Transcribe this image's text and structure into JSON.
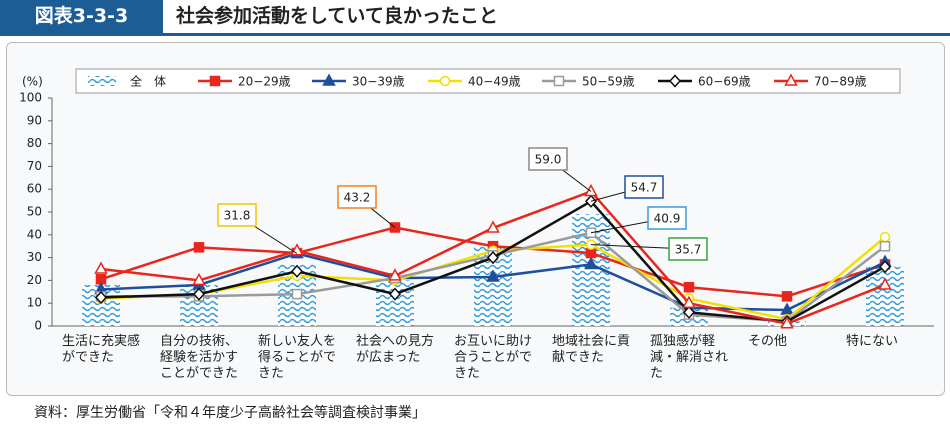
{
  "header": {
    "label": "図表3-3-3",
    "title": "社会参加活動をしていて良かったこと"
  },
  "chart_data": {
    "type": "bar-line",
    "y_unit": "(%)",
    "categories": [
      "生活に充実感ができた",
      "自分の技術、経験を活かすことができた",
      "新しい友人を得ることができた",
      "社会への見方が広まった",
      "お互いに助け合うことができた",
      "地域社会に貢献できた",
      "孤独感が軽減・解消された",
      "その他",
      "特にない"
    ],
    "ylim": [
      0,
      100
    ],
    "yticks": [
      0,
      10,
      20,
      30,
      40,
      50,
      60,
      70,
      80,
      90,
      100
    ],
    "series": [
      {
        "name": "全　体",
        "type": "bar",
        "color": "#3a9bd8",
        "values": [
          18,
          18,
          27,
          20,
          35,
          49,
          8,
          2,
          26
        ]
      },
      {
        "name": "20−29歳",
        "type": "line",
        "marker": "square",
        "filled": true,
        "color": "#e8261c",
        "values": [
          20.5,
          34.5,
          32,
          43.2,
          35,
          32,
          17,
          13,
          27
        ]
      },
      {
        "name": "30−39歳",
        "type": "line",
        "marker": "triangle",
        "filled": true,
        "color": "#1f4e9c",
        "values": [
          16,
          18,
          31.8,
          21,
          21.5,
          27,
          8,
          7,
          28
        ]
      },
      {
        "name": "40−49歳",
        "type": "line",
        "marker": "circle",
        "filled": false,
        "color": "#f2e000",
        "values": [
          12,
          14,
          22,
          20,
          33,
          35.7,
          12,
          3,
          39
        ]
      },
      {
        "name": "50−59歳",
        "type": "line",
        "marker": "square",
        "filled": false,
        "color": "#9a9a9a",
        "values": [
          13,
          13,
          14,
          21,
          31,
          40.9,
          5,
          2,
          35
        ]
      },
      {
        "name": "60−69歳",
        "type": "line",
        "marker": "diamond",
        "filled": false,
        "color": "#111111",
        "values": [
          12.5,
          14,
          24,
          14,
          30,
          54.7,
          6,
          2,
          26
        ]
      },
      {
        "name": "70−89歳",
        "type": "line",
        "marker": "triangle",
        "filled": false,
        "color": "#e8261c",
        "values": [
          25,
          20,
          33,
          22,
          43,
          59.0,
          10,
          1,
          18
        ]
      }
    ],
    "annotations": [
      {
        "label": "31.8",
        "color": "#f5c400"
      },
      {
        "label": "43.2",
        "color": "#f08020"
      },
      {
        "label": "59.0",
        "color": "#888888"
      },
      {
        "label": "54.7",
        "color": "#1f4e9c"
      },
      {
        "label": "40.9",
        "color": "#3a9bd8"
      },
      {
        "label": "35.7",
        "color": "#3aa040"
      }
    ]
  },
  "source": "資料：厚生労働省「令和４年度少子高齢社会等調査検討事業」"
}
